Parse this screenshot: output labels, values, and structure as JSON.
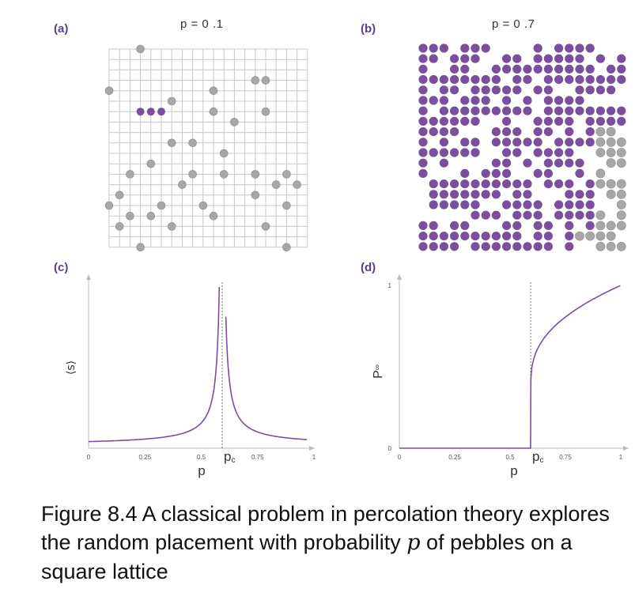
{
  "panels": {
    "a": {
      "label": "(a)",
      "title": "p = 0 .1"
    },
    "b": {
      "label": "(b)",
      "title": "p = 0 .7"
    },
    "c": {
      "label": "(c)"
    },
    "d": {
      "label": "(d)"
    }
  },
  "colors": {
    "occupied_cluster": "#7b4f9d",
    "occupied_isolated": "#a7a7a7",
    "grid": "#c9c9c9",
    "curve": "#7b4f9d"
  },
  "chart_data": [
    {
      "type": "line",
      "panel": "(c)",
      "xlabel": "p",
      "ylabel": "⟨s⟩",
      "xlim": [
        0,
        1
      ],
      "xticks": [
        "0",
        "0.25",
        "0.5",
        "0.75",
        "1"
      ],
      "xtick_values": [
        0,
        0.25,
        0.5,
        0.75,
        1
      ],
      "critical_point_label": "p",
      "critical_point_sub": "c",
      "critical_point": 0.593,
      "series": [
        {
          "shape": "diverging at pc"
        }
      ]
    },
    {
      "type": "line",
      "panel": "(d)",
      "xlabel": "p",
      "ylabel": "P",
      "ylabel_sub": "∞",
      "xlim": [
        0,
        1
      ],
      "ylim": [
        0,
        1
      ],
      "xticks": [
        "0",
        "0.25",
        "0.5",
        "0.75",
        "1"
      ],
      "xtick_values": [
        0,
        0.25,
        0.5,
        0.75,
        1
      ],
      "yticks": [
        "0",
        "1"
      ],
      "critical_point_label": "p",
      "critical_point_sub": "c",
      "critical_point": 0.593,
      "series": [
        {
          "shape": "zero below pc, rising above"
        }
      ]
    }
  ],
  "caption": {
    "before_var": "Figure 8.4 A classical problem in percolation theory explores the random placement with probability ",
    "var": "p",
    "after_var": " of pebbles on a square lattice"
  }
}
